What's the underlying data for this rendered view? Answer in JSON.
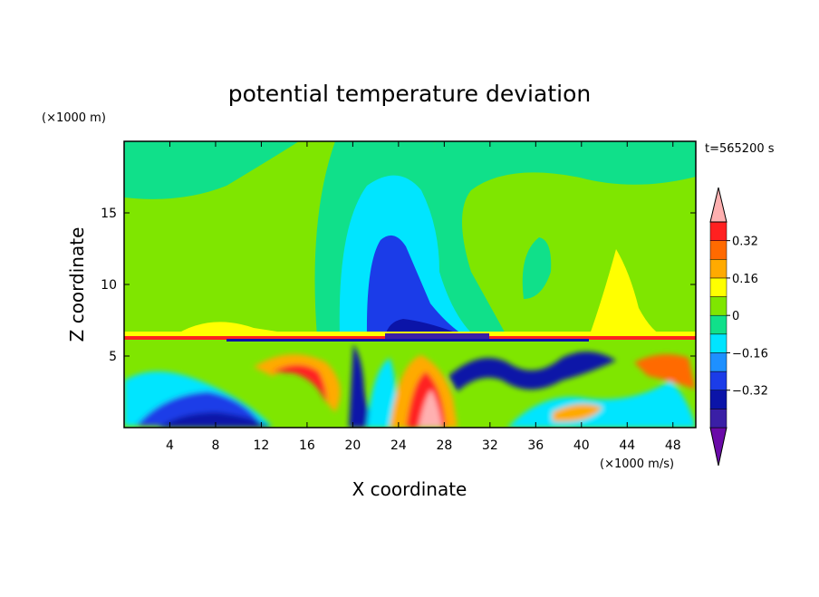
{
  "chart_data": {
    "type": "heatmap",
    "title": "potential temperature deviation",
    "xlabel": "X coordinate",
    "ylabel": "Z coordinate",
    "x_unit": "(×1000 m/s)",
    "y_unit": "(×1000 m)",
    "time_label": "t=565200 s",
    "xlim": [
      0,
      50
    ],
    "ylim": [
      0,
      20
    ],
    "x_ticks": [
      4,
      8,
      12,
      16,
      20,
      24,
      28,
      32,
      36,
      40,
      44,
      48
    ],
    "y_ticks": [
      5,
      10,
      15
    ],
    "colorbar": {
      "levels": [
        -0.48,
        -0.4,
        -0.32,
        -0.24,
        -0.16,
        -0.08,
        0,
        0.08,
        0.16,
        0.24,
        0.32,
        0.4
      ],
      "tick_labels": [
        "0.32",
        "0.16",
        "0",
        "−0.16",
        "−0.32"
      ],
      "tick_values": [
        0.32,
        0.16,
        0,
        -0.16,
        -0.32
      ],
      "colors": [
        "#6a0aa8",
        "#3a1fa6",
        "#0b14a8",
        "#1b3ce8",
        "#1e90ff",
        "#00e5ff",
        "#10e08a",
        "#7fe600",
        "#ffff00",
        "#ffaa00",
        "#ff6a00",
        "#ff2020",
        "#ffb0b0"
      ]
    }
  }
}
